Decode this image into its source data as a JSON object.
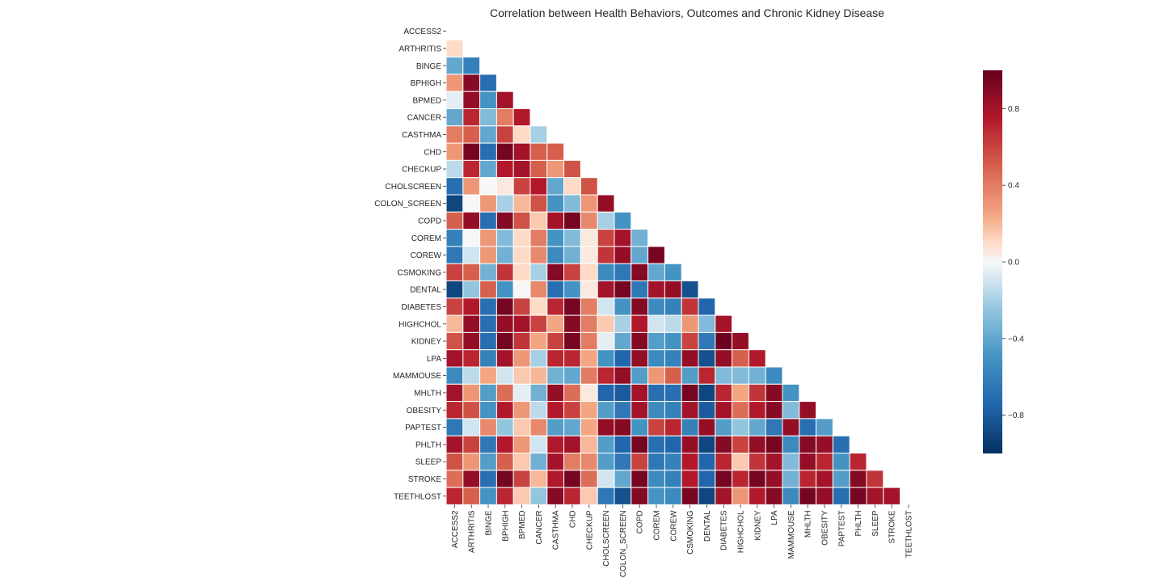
{
  "chart_data": {
    "type": "heatmap",
    "title": "Correlation between Health Behaviors, Outcomes and Chronic Kidney Disease",
    "xlabel": "",
    "ylabel": "",
    "mask": "upper-triangle",
    "colormap": "RdBu_r",
    "vmin": -1,
    "vmax": 1,
    "colorbar_ticks": [
      0.8,
      0.4,
      0.0,
      -0.4,
      -0.8
    ],
    "colorbar_tick_labels": [
      "0.8",
      "0.4",
      "0.0",
      "−0.4",
      "−0.8"
    ],
    "variables": [
      "ACCESS2",
      "ARTHRITIS",
      "BINGE",
      "BPHIGH",
      "BPMED",
      "CANCER",
      "CASTHMA",
      "CHD",
      "CHECKUP",
      "CHOLSCREEN",
      "COLON_SCREEN",
      "COPD",
      "COREM",
      "COREW",
      "CSMOKING",
      "DENTAL",
      "DIABETES",
      "HIGHCHOL",
      "KIDNEY",
      "LPA",
      "MAMMOUSE",
      "MHLTH",
      "OBESITY",
      "PAPTEST",
      "PHLTH",
      "SLEEP",
      "STROKE",
      "TEETHLOST"
    ],
    "lower_triangle_rows": [
      [],
      [
        0.1
      ],
      [
        -0.4,
        -0.6
      ],
      [
        0.3,
        0.9,
        -0.7
      ],
      [
        -0.05,
        0.85,
        -0.5,
        0.8
      ],
      [
        -0.4,
        0.7,
        -0.3,
        0.4,
        0.75
      ],
      [
        0.4,
        0.5,
        -0.4,
        0.6,
        0.1,
        -0.2
      ],
      [
        0.3,
        0.95,
        -0.7,
        0.95,
        0.8,
        0.5,
        0.5
      ],
      [
        -0.15,
        0.7,
        -0.4,
        0.75,
        0.8,
        0.5,
        0.3,
        0.55
      ],
      [
        -0.7,
        0.3,
        0.0,
        0.05,
        0.6,
        0.75,
        -0.4,
        0.1,
        0.55
      ],
      [
        -0.9,
        0.0,
        0.3,
        -0.2,
        0.2,
        0.55,
        -0.5,
        -0.3,
        0.3,
        0.85
      ],
      [
        0.5,
        0.85,
        -0.7,
        0.9,
        0.55,
        0.15,
        0.8,
        0.95,
        0.35,
        -0.2,
        -0.5
      ],
      [
        -0.6,
        0.0,
        0.3,
        -0.3,
        0.1,
        0.4,
        -0.5,
        -0.3,
        0.05,
        0.6,
        0.8,
        -0.35
      ],
      [
        -0.65,
        -0.1,
        0.3,
        -0.35,
        0.1,
        0.35,
        -0.55,
        -0.35,
        0.05,
        0.65,
        0.85,
        -0.4,
        0.95
      ],
      [
        0.6,
        0.5,
        -0.35,
        0.65,
        0.1,
        -0.2,
        0.9,
        0.6,
        0.1,
        -0.55,
        -0.65,
        0.9,
        -0.4,
        -0.5
      ],
      [
        -0.9,
        -0.25,
        0.5,
        -0.5,
        0.0,
        0.35,
        -0.7,
        -0.5,
        0.05,
        0.8,
        0.95,
        -0.65,
        0.8,
        0.85,
        -0.85
      ],
      [
        0.6,
        0.75,
        -0.7,
        0.95,
        0.6,
        0.1,
        0.7,
        0.95,
        0.4,
        -0.1,
        -0.5,
        0.9,
        -0.55,
        -0.6,
        0.65,
        -0.75
      ],
      [
        0.2,
        0.85,
        -0.7,
        0.85,
        0.8,
        0.6,
        0.25,
        0.9,
        0.4,
        0.15,
        -0.2,
        0.75,
        -0.1,
        -0.15,
        0.3,
        -0.3,
        0.8
      ],
      [
        0.55,
        0.85,
        -0.7,
        0.95,
        0.65,
        0.25,
        0.6,
        0.95,
        0.4,
        -0.05,
        -0.4,
        0.9,
        -0.45,
        -0.5,
        0.6,
        -0.65,
        0.98,
        0.85
      ],
      [
        0.8,
        0.7,
        -0.6,
        0.8,
        0.3,
        -0.2,
        0.7,
        0.7,
        0.25,
        -0.5,
        -0.75,
        0.85,
        -0.55,
        -0.6,
        0.85,
        -0.85,
        0.85,
        0.5,
        0.75
      ],
      [
        -0.55,
        -0.15,
        0.25,
        -0.1,
        0.15,
        0.2,
        -0.35,
        -0.4,
        0.4,
        0.7,
        0.85,
        -0.45,
        0.3,
        0.5,
        -0.45,
        0.7,
        -0.3,
        -0.3,
        -0.35,
        -0.55
      ],
      [
        0.8,
        0.3,
        -0.45,
        0.45,
        -0.05,
        -0.35,
        0.85,
        0.45,
        0.05,
        -0.75,
        -0.8,
        0.8,
        -0.7,
        -0.7,
        0.95,
        -0.9,
        0.7,
        0.25,
        0.65,
        0.9,
        -0.5
      ],
      [
        0.7,
        0.55,
        -0.5,
        0.75,
        0.3,
        -0.15,
        0.75,
        0.6,
        0.25,
        -0.45,
        -0.65,
        0.8,
        -0.55,
        -0.6,
        0.8,
        -0.8,
        0.8,
        0.45,
        0.75,
        0.9,
        -0.3,
        0.85
      ],
      [
        -0.65,
        -0.1,
        0.35,
        -0.25,
        0.15,
        0.35,
        -0.45,
        -0.4,
        0.25,
        0.85,
        0.9,
        -0.5,
        0.6,
        0.7,
        -0.6,
        0.85,
        -0.45,
        -0.25,
        -0.4,
        -0.65,
        0.85,
        -0.7,
        -0.45
      ],
      [
        0.8,
        0.6,
        -0.65,
        0.75,
        0.3,
        -0.1,
        0.75,
        0.8,
        0.2,
        -0.45,
        -0.75,
        0.95,
        -0.7,
        -0.75,
        0.85,
        -0.9,
        0.9,
        0.6,
        0.85,
        0.95,
        -0.55,
        0.9,
        0.85,
        -0.7
      ],
      [
        0.55,
        0.3,
        -0.45,
        0.5,
        0.15,
        -0.35,
        0.8,
        0.4,
        0.35,
        -0.45,
        -0.65,
        0.6,
        -0.65,
        -0.6,
        0.75,
        -0.75,
        0.7,
        0.15,
        0.65,
        0.8,
        -0.3,
        0.85,
        0.7,
        -0.5,
        0.7
      ],
      [
        0.45,
        0.85,
        -0.7,
        0.95,
        0.6,
        0.2,
        0.75,
        0.95,
        0.45,
        -0.1,
        -0.4,
        0.95,
        -0.55,
        -0.6,
        0.75,
        -0.75,
        0.95,
        0.7,
        0.95,
        0.85,
        -0.35,
        0.7,
        0.8,
        -0.45,
        0.9,
        0.65
      ],
      [
        0.7,
        0.5,
        -0.5,
        0.7,
        0.15,
        -0.25,
        0.9,
        0.7,
        0.15,
        -0.65,
        -0.85,
        0.9,
        -0.5,
        -0.55,
        0.95,
        -0.9,
        0.8,
        0.3,
        0.75,
        0.9,
        -0.55,
        0.95,
        0.85,
        -0.7,
        0.95,
        0.8,
        0.8
      ]
    ]
  }
}
